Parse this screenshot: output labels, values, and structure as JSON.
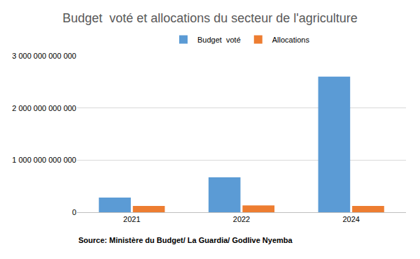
{
  "chart_data": {
    "type": "bar",
    "title": "Budget  voté et allocations du secteur de l'agriculture",
    "categories": [
      "2021",
      "2022",
      "2024"
    ],
    "series": [
      {
        "name": "Budget  voté",
        "color": "#5b9bd5",
        "values": [
          280000000000,
          670000000000,
          2600000000000
        ]
      },
      {
        "name": "Allocations",
        "color": "#ed7d31",
        "values": [
          120000000000,
          130000000000,
          120000000000
        ]
      }
    ],
    "ylim": [
      0,
      3000000000000
    ],
    "yticks": [
      0,
      {
        "value": 1000000000000,
        "label": "1 000 000 000 000"
      },
      {
        "value": 2000000000000,
        "label": "2 000 000 000 000"
      },
      {
        "value": 3000000000000,
        "label": "3 000 000 000 000"
      }
    ],
    "grid": true,
    "legend": "top",
    "annotations": [
      "Source: Ministère du Budget/ La Guardia/ Godlive Nyemba"
    ]
  }
}
